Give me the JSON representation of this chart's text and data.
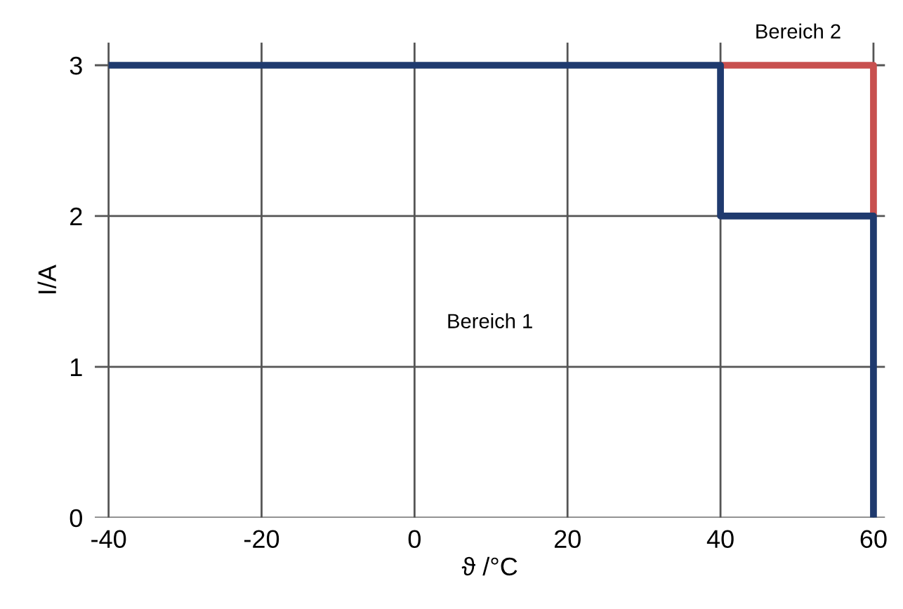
{
  "chart_data": {
    "type": "line",
    "xlabel": "ϑ /°C",
    "ylabel": "I/A",
    "series": [
      {
        "color": "#c8504f",
        "x": [
          40,
          60,
          60
        ],
        "values": [
          3,
          3,
          2
        ]
      },
      {
        "color": "#1f3a6e",
        "x": [
          -40,
          40,
          40,
          60,
          60
        ],
        "values": [
          3,
          3,
          2,
          2,
          0
        ]
      }
    ],
    "xlim": [
      -41.8,
      61.5
    ],
    "ylim": [
      0,
      3.15
    ],
    "xticks": [
      -40,
      -20,
      0,
      20,
      40,
      60
    ],
    "yticks": [
      0,
      1,
      2,
      3
    ],
    "grid": true,
    "marker": "none",
    "line_style": "solid",
    "annotations": [
      "Bereich 1",
      "Bereich 2"
    ]
  }
}
